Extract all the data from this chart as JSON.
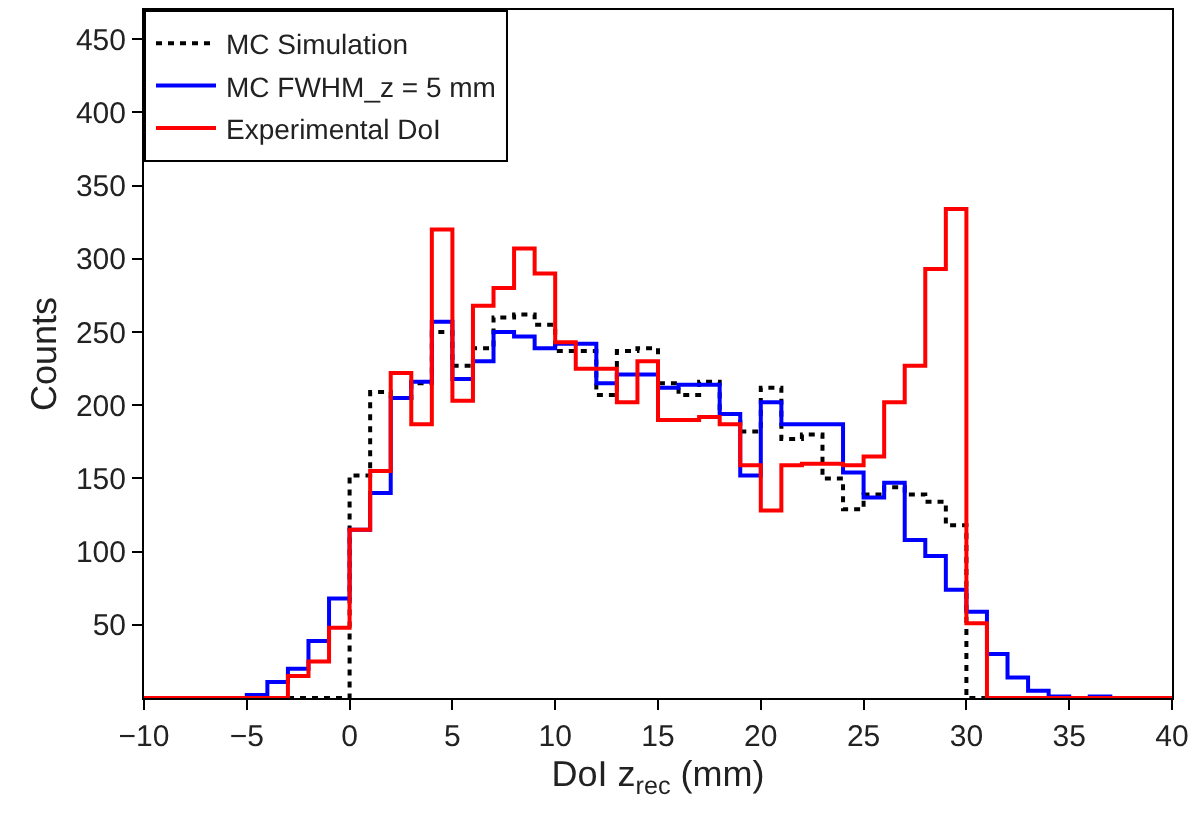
{
  "chart_data": {
    "type": "histogram",
    "xlabel": "DoI z$_{rec}$ (mm)",
    "ylabel": "Counts",
    "bins": [
      -10,
      -9,
      -8,
      -7,
      -6,
      -5,
      -4,
      -3,
      -2,
      -1,
      0,
      1,
      2,
      3,
      4,
      5,
      6,
      7,
      8,
      9,
      10,
      11,
      12,
      13,
      14,
      15,
      16,
      17,
      18,
      19,
      20,
      21,
      22,
      23,
      24,
      25,
      26,
      27,
      28,
      29,
      30,
      31,
      32,
      33,
      34,
      35,
      36,
      37,
      38,
      39,
      40
    ],
    "series": [
      {
        "name": "MC Simulation",
        "color": "#000000",
        "line_style": "dotted",
        "values": [
          0,
          0,
          0,
          0,
          0,
          0,
          0,
          0,
          0,
          0,
          152,
          209,
          205,
          215,
          250,
          227,
          239,
          260,
          262,
          255,
          237,
          237,
          207,
          237,
          239,
          215,
          207,
          216,
          194,
          182,
          212,
          177,
          180,
          150,
          129,
          139,
          144,
          139,
          134,
          118,
          0,
          0,
          0,
          0,
          0,
          0,
          0,
          0,
          0,
          0
        ]
      },
      {
        "name": "MC FWHM_z = 5 mm",
        "color": "#0000ff",
        "line_style": "solid",
        "values": [
          0,
          0,
          0,
          0,
          0,
          2,
          11,
          20,
          39,
          68,
          115,
          140,
          205,
          216,
          257,
          218,
          230,
          250,
          247,
          239,
          242,
          242,
          215,
          221,
          221,
          212,
          214,
          214,
          194,
          152,
          202,
          187,
          187,
          187,
          154,
          137,
          147,
          108,
          97,
          74,
          59,
          30,
          14,
          5,
          1,
          0,
          1,
          0,
          0,
          0
        ]
      },
      {
        "name": "Experimental DoI",
        "color": "#ff0000",
        "line_style": "solid",
        "values": [
          0,
          0,
          0,
          0,
          0,
          0,
          0,
          15,
          25,
          48,
          115,
          155,
          222,
          187,
          320,
          203,
          268,
          280,
          307,
          290,
          243,
          225,
          225,
          202,
          230,
          190,
          190,
          192,
          187,
          159,
          128,
          159,
          160,
          160,
          159,
          165,
          202,
          227,
          293,
          334,
          51,
          0,
          0,
          0,
          0,
          0,
          0,
          0,
          0,
          0
        ]
      }
    ],
    "xlim": [
      -10,
      40
    ],
    "ylim": [
      0,
      470
    ],
    "xticks": [
      -10,
      -5,
      0,
      5,
      10,
      15,
      20,
      25,
      30,
      35,
      40
    ],
    "yticks": [
      50,
      100,
      150,
      200,
      250,
      300,
      350,
      400,
      450
    ],
    "legend": "top left"
  }
}
